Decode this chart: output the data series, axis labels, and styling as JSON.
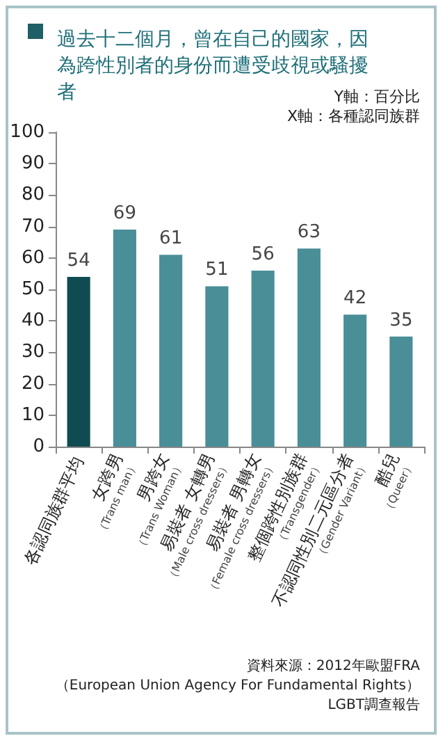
{
  "chart_data": {
    "type": "bar",
    "title": "過去十二個月，曾在自己的國家，因為跨性別者的身份而遭受歧視或騷擾者",
    "categories": [
      "各認同族群平均",
      "女跨男\n（Trans man）",
      "男跨女\n（Trans Woman）",
      "易裝者 女轉男\n（Male cross dressers）",
      "易裝者 男轉女\n（Female cross dressers）",
      "整個跨性別族群\n（Transgender）",
      "不認同性別二元區分者\n（Gender Variant）",
      "酷兒\n（Queer）"
    ],
    "values": [
      54,
      69,
      61,
      51,
      56,
      63,
      42,
      35
    ],
    "colors": [
      "#0f4c52",
      "#4a8e97",
      "#4a8e97",
      "#4a8e97",
      "#4a8e97",
      "#4a8e97",
      "#4a8e97",
      "#4a8e97"
    ],
    "ylim": [
      0,
      100
    ],
    "yticks": [
      0,
      10,
      20,
      30,
      40,
      50,
      60,
      70,
      80,
      90,
      100
    ],
    "grid": false,
    "data_labels": true,
    "annotations": [
      "Y軸：百分比",
      "X軸：各種認同族群",
      "資料來源：2012年歐盟FRA",
      "（European Union Agency For Fundamental Rights）",
      "LGBT調查報告"
    ]
  }
}
